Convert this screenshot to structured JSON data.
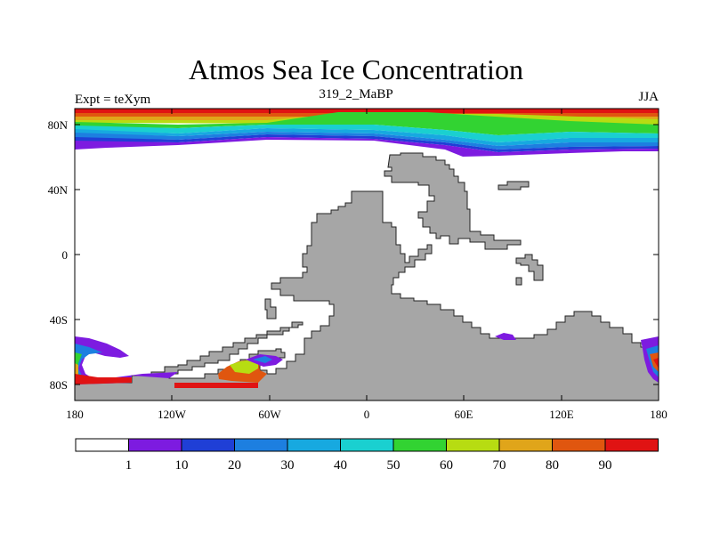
{
  "title": "Atmos Sea Ice Concentration",
  "subtitle_left": "Expt = teXym",
  "subtitle_center": "319_2_MaBP",
  "subtitle_right": "JJA",
  "lat_ticks": [
    "80N",
    "40N",
    "0",
    "40S",
    "80S"
  ],
  "lon_ticks": [
    "180",
    "120W",
    "60W",
    "0",
    "60E",
    "120E",
    "180"
  ],
  "colorbar": {
    "labels": [
      "1",
      "10",
      "20",
      "30",
      "40",
      "50",
      "60",
      "70",
      "80",
      "90"
    ],
    "colors": [
      "#ffffff",
      "#7d1be0",
      "#1f3fd6",
      "#1d7fe0",
      "#17a9e0",
      "#1ad0d0",
      "#32d332",
      "#b7dc12",
      "#e0a51a",
      "#e0560f",
      "#e01313"
    ]
  },
  "land_color": "#a6a6a6"
}
